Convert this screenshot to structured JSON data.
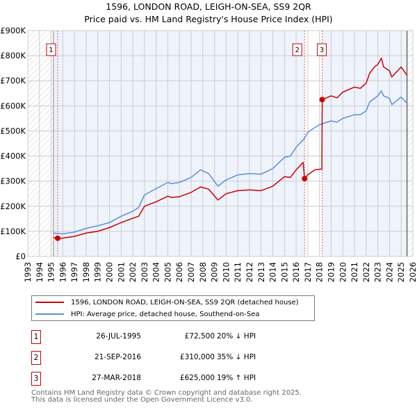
{
  "title": "1596, LONDON ROAD, LEIGH-ON-SEA, SS9 2QR",
  "subtitle": "Price paid vs. HM Land Registry's House Price Index (HPI)",
  "chart_data": {
    "type": "line",
    "title": "1596, LONDON ROAD, LEIGH-ON-SEA, SS9 2QR — Price paid vs. HM Land Registry's House Price Index (HPI)",
    "xlim": [
      1993,
      2026
    ],
    "ylim": [
      0,
      900000
    ],
    "y_ticks": [
      "£0",
      "£100K",
      "£200K",
      "£300K",
      "£400K",
      "£500K",
      "£600K",
      "£700K",
      "£800K",
      "£900K"
    ],
    "x_ticks": [
      "1993",
      "1994",
      "1995",
      "1996",
      "1997",
      "1998",
      "1999",
      "2000",
      "2001",
      "2002",
      "2003",
      "2004",
      "2005",
      "2006",
      "2007",
      "2008",
      "2009",
      "2010",
      "2011",
      "2012",
      "2013",
      "2014",
      "2015",
      "2016",
      "2017",
      "2018",
      "2019",
      "2020",
      "2021",
      "2022",
      "2023",
      "2024",
      "2025",
      "2026"
    ],
    "grid": true,
    "series": [
      {
        "name": "1596, LONDON ROAD, LEIGH-ON-SEA, SS9 2QR (detached house)",
        "color": "#cc0000",
        "x": [
          1995.2,
          1995.56,
          1996,
          1997,
          1998,
          1999,
          2000,
          2001,
          2002,
          2002.5,
          2003,
          2004,
          2005,
          2005.3,
          2006,
          2007,
          2007.8,
          2008.5,
          2009.3,
          2010,
          2011,
          2012,
          2013,
          2014,
          2015,
          2015.5,
          2016,
          2016.6,
          2016.72,
          2017,
          2017.6,
          2018.2,
          2018.23,
          2019,
          2019.5,
          2020,
          2021,
          2021.5,
          2022,
          2022.3,
          2022.7,
          2023,
          2023.3,
          2023.5,
          2024,
          2024.2,
          2025,
          2025.5
        ],
        "y": [
          75000,
          72500,
          73000,
          80000,
          93000,
          100000,
          115000,
          135000,
          152000,
          160000,
          200000,
          218000,
          240000,
          235000,
          238000,
          255000,
          277000,
          268000,
          225000,
          250000,
          262000,
          265000,
          262000,
          280000,
          318000,
          315000,
          345000,
          375000,
          310000,
          325000,
          345000,
          348000,
          625000,
          640000,
          632000,
          655000,
          675000,
          670000,
          690000,
          730000,
          755000,
          765000,
          790000,
          755000,
          740000,
          715000,
          755000,
          722000
        ]
      },
      {
        "name": "HPI: Average price, detached house, Southend-on-Sea",
        "color": "#5b8fd6",
        "x": [
          1995.2,
          1996,
          1997,
          1998,
          1999,
          2000,
          2001,
          2002,
          2002.5,
          2003,
          2004,
          2005,
          2005.3,
          2006,
          2007,
          2007.8,
          2008.5,
          2009.3,
          2010,
          2011,
          2012,
          2013,
          2014,
          2015,
          2015.5,
          2016,
          2016.7,
          2017,
          2017.5,
          2018,
          2019,
          2019.5,
          2020,
          2021,
          2021.5,
          2022,
          2022.3,
          2023,
          2023.3,
          2023.5,
          2024,
          2024.2,
          2025,
          2025.5
        ],
        "y": [
          93000,
          90000,
          97000,
          112000,
          122000,
          135000,
          160000,
          180000,
          195000,
          245000,
          270000,
          295000,
          290000,
          295000,
          315000,
          345000,
          330000,
          280000,
          305000,
          325000,
          330000,
          328000,
          350000,
          395000,
          400000,
          435000,
          470000,
          495000,
          510000,
          525000,
          540000,
          535000,
          550000,
          565000,
          565000,
          580000,
          615000,
          640000,
          660000,
          640000,
          630000,
          605000,
          635000,
          610000
        ]
      }
    ],
    "sales": [
      {
        "label": "1",
        "x": 1995.56,
        "y": 72500
      },
      {
        "label": "2",
        "x": 2016.72,
        "y": 310000
      },
      {
        "label": "3",
        "x": 2018.23,
        "y": 625000
      }
    ],
    "legend_placement": "bottom"
  },
  "legend": [
    {
      "label": "1596, LONDON ROAD, LEIGH-ON-SEA, SS9 2QR (detached house)",
      "color": "#cc0000"
    },
    {
      "label": "HPI: Average price, detached house, Southend-on-Sea",
      "color": "#5b8fd6"
    }
  ],
  "table": [
    {
      "num": "1",
      "date": "26-JUL-1995",
      "price": "£72,500",
      "hpi": "20% ↓ HPI"
    },
    {
      "num": "2",
      "date": "21-SEP-2016",
      "price": "£310,000",
      "hpi": "35% ↓ HPI"
    },
    {
      "num": "3",
      "date": "27-MAR-2018",
      "price": "£625,000",
      "hpi": "19% ↑ HPI"
    }
  ],
  "footer": [
    "Contains HM Land Registry data © Crown copyright and database right 2025.",
    "This data is licensed under the Open Government Licence v3.0."
  ]
}
